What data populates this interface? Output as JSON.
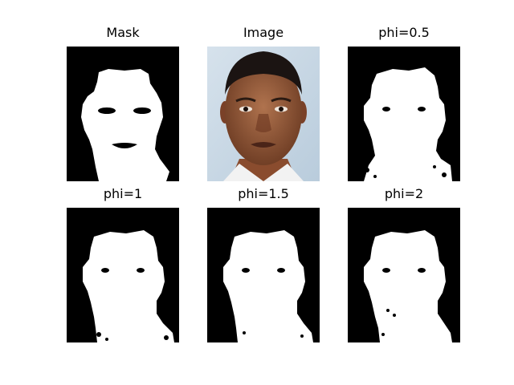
{
  "panels": [
    {
      "title": "Mask",
      "content": "ground-truth skin mask (binary)"
    },
    {
      "title": "Image",
      "content": "photograph of a man's face"
    },
    {
      "title": "phi=0.5",
      "content": "binary segmentation result"
    },
    {
      "title": "phi=1",
      "content": "binary segmentation result"
    },
    {
      "title": "phi=1.5",
      "content": "binary segmentation result"
    },
    {
      "title": "phi=2",
      "content": "binary segmentation result"
    }
  ],
  "colors": {
    "background": "#000000",
    "foreground": "#ffffff",
    "photo_bg": "#cddbe6"
  }
}
